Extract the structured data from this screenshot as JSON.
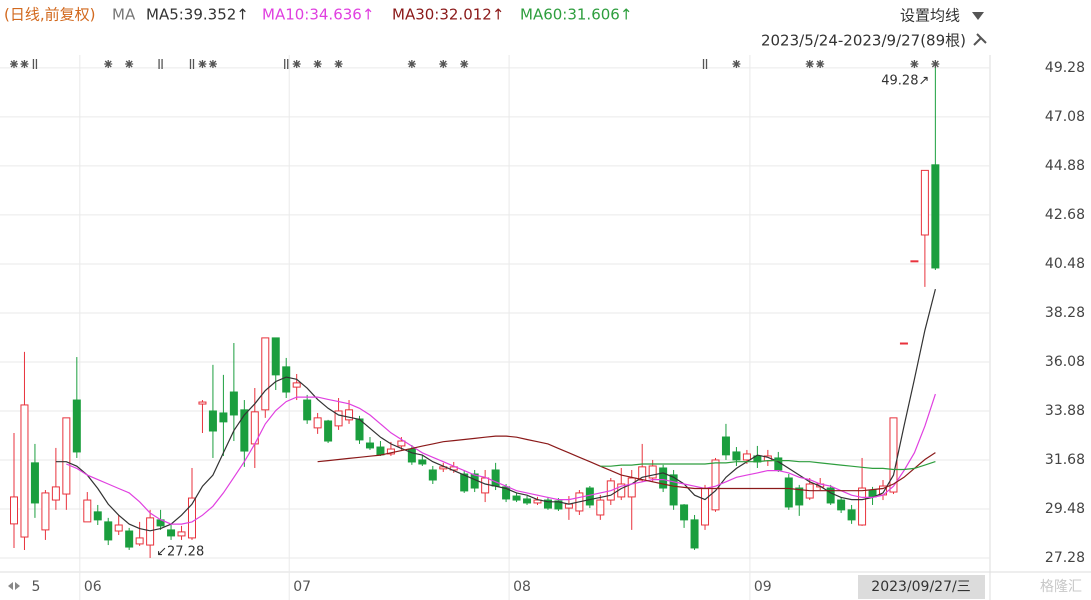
{
  "chart_data": {
    "type": "candlestick",
    "subtitle": "(日线,前复权)",
    "ma_label": "MA",
    "ma_setting": "设置均线",
    "range_label": "2023/5/24-2023/9/27(89根)",
    "cursor_date": "2023/09/27/三",
    "watermark": "格隆汇",
    "annotations": {
      "high": "49.28↗",
      "low": "↙27.28"
    },
    "up_color": "#e8323c",
    "down_color": "#1b9e3e",
    "grid": true,
    "categories": [
      null,
      "5",
      null,
      null,
      null,
      null,
      "06",
      null,
      null,
      null,
      null,
      null,
      null,
      null,
      null,
      null,
      null,
      null,
      null,
      null,
      null,
      null,
      null,
      null,
      null,
      null,
      "07",
      null,
      null,
      null,
      null,
      null,
      null,
      null,
      null,
      null,
      null,
      null,
      null,
      null,
      null,
      null,
      null,
      null,
      null,
      null,
      null,
      "08",
      null,
      null,
      null,
      null,
      null,
      null,
      null,
      null,
      null,
      null,
      null,
      null,
      null,
      null,
      null,
      null,
      null,
      null,
      null,
      null,
      null,
      null,
      "09",
      null,
      null,
      null,
      null,
      null,
      null,
      null,
      null,
      null,
      null,
      null,
      null,
      null,
      null,
      null,
      null,
      null,
      null
    ],
    "open": [
      28.81,
      28.22,
      31.55,
      28.54,
      29.88,
      30.15,
      34.37,
      28.9,
      29.35,
      28.9,
      28.49,
      28.49,
      27.91,
      27.86,
      28.99,
      28.54,
      28.27,
      28.18,
      34.19,
      33.88,
      33.79,
      34.73,
      33.93,
      32.4,
      33.93,
      37.16,
      35.86,
      34.95,
      34.37,
      33.12,
      33.43,
      33.21,
      33.48,
      33.52,
      32.44,
      32.26,
      31.95,
      32.31,
      32.17,
      31.68,
      31.23,
      31.28,
      31.23,
      31.05,
      31.05,
      30.2,
      31.23,
      30.47,
      30.06,
      29.93,
      29.75,
      29.88,
      29.84,
      29.52,
      29.39,
      30.42,
      29.21,
      29.88,
      30.02,
      30.02,
      30.78,
      30.87,
      31.32,
      31.01,
      29.66,
      28.99,
      28.76,
      29.44,
      32.71,
      32.04,
      31.68,
      31.86,
      31.64,
      31.77,
      30.87,
      30.42,
      29.97,
      30.47,
      30.42,
      29.88,
      29.44,
      28.76,
      30.33,
      30.11,
      30.24,
      36.93,
      40.62,
      41.78,
      44.93
    ],
    "high": [
      32.89,
      36.53,
      32.4,
      30.33,
      32.22,
      33.57,
      36.3,
      30.24,
      29.66,
      29.08,
      29.21,
      28.63,
      28.9,
      29.44,
      29.44,
      28.81,
      28.72,
      31.32,
      34.37,
      35.95,
      35.5,
      36.93,
      34.37,
      34.91,
      37.16,
      37.16,
      36.26,
      35.54,
      34.6,
      33.79,
      33.48,
      34.46,
      34.37,
      33.66,
      32.71,
      32.53,
      32.49,
      32.71,
      32.35,
      31.91,
      31.41,
      31.55,
      31.59,
      31.23,
      31.23,
      31.23,
      31.55,
      30.6,
      30.2,
      30.06,
      30.02,
      30.02,
      29.97,
      30.06,
      30.33,
      30.51,
      30.11,
      30.87,
      31.32,
      31.23,
      32.4,
      31.68,
      31.46,
      31.23,
      29.7,
      29.21,
      30.56,
      31.77,
      33.3,
      32.26,
      32.13,
      32.31,
      32.13,
      32.04,
      31.05,
      30.56,
      30.87,
      30.87,
      30.56,
      30.02,
      29.66,
      31.77,
      30.47,
      30.78,
      33.57,
      36.93,
      40.62,
      44.68,
      49.28
    ],
    "low": [
      27.73,
      27.64,
      29.08,
      28.09,
      29.44,
      29.44,
      31.77,
      28.9,
      28.76,
      27.86,
      28.31,
      27.64,
      27.82,
      27.28,
      28.54,
      28.09,
      28.09,
      28.09,
      32.89,
      31.77,
      31.86,
      32.53,
      31.37,
      31.32,
      33.57,
      34.82,
      34.46,
      34.37,
      33.3,
      32.85,
      32.44,
      33.03,
      33.3,
      32.4,
      32.13,
      31.86,
      31.86,
      32.13,
      31.46,
      31.41,
      30.6,
      31.14,
      31.1,
      30.2,
      30.24,
      29.79,
      30.33,
      29.79,
      29.79,
      29.66,
      29.66,
      29.44,
      29.39,
      28.99,
      29.21,
      29.52,
      28.99,
      29.66,
      29.88,
      28.54,
      30.69,
      30.69,
      30.24,
      29.44,
      28.63,
      27.64,
      28.54,
      29.35,
      31.68,
      31.41,
      31.5,
      31.32,
      31.41,
      31.14,
      29.44,
      29.17,
      29.88,
      30.33,
      29.66,
      29.3,
      28.81,
      28.72,
      29.66,
      29.88,
      30.15,
      36.93,
      40.62,
      39.45,
      40.21
    ],
    "close": [
      30.02,
      34.15,
      29.75,
      30.2,
      30.47,
      33.57,
      32.04,
      29.88,
      28.99,
      28.09,
      28.76,
      27.77,
      28.18,
      29.08,
      28.72,
      28.27,
      28.45,
      29.97,
      34.28,
      32.98,
      33.39,
      33.7,
      32.08,
      33.84,
      37.16,
      35.5,
      34.73,
      35.14,
      33.48,
      33.57,
      32.53,
      33.88,
      33.93,
      32.58,
      32.22,
      31.91,
      32.17,
      32.53,
      31.59,
      31.5,
      30.78,
      31.37,
      31.37,
      30.29,
      30.42,
      30.87,
      30.51,
      29.93,
      29.88,
      29.75,
      29.88,
      29.52,
      29.48,
      29.7,
      30.2,
      29.66,
      29.88,
      30.74,
      30.6,
      30.87,
      31.37,
      31.41,
      30.42,
      29.66,
      28.99,
      27.73,
      30.42,
      31.68,
      31.91,
      31.68,
      31.95,
      31.59,
      31.86,
      31.23,
      29.57,
      29.66,
      30.6,
      30.6,
      29.75,
      29.44,
      28.99,
      30.42,
      30.02,
      30.51,
      33.57,
      36.93,
      40.62,
      44.68,
      40.3
    ],
    "series": [
      {
        "name": "MA5:39.352↑",
        "color": "#333333",
        "values": [
          null,
          null,
          null,
          null,
          31.6,
          31.6,
          31.4,
          31.0,
          30.4,
          29.7,
          29.2,
          28.8,
          28.6,
          28.5,
          28.6,
          28.8,
          29.2,
          29.7,
          30.5,
          31.0,
          32.0,
          33.0,
          33.7,
          34.2,
          34.8,
          35.2,
          35.4,
          35.3,
          34.9,
          34.4,
          34.0,
          33.7,
          33.6,
          33.5,
          33.1,
          32.7,
          32.4,
          32.2,
          32.0,
          31.9,
          31.6,
          31.4,
          31.2,
          31.0,
          30.8,
          30.6,
          30.5,
          30.4,
          30.2,
          30.1,
          29.9,
          29.8,
          29.8,
          29.7,
          29.8,
          29.9,
          30.0,
          30.1,
          30.4,
          30.6,
          30.9,
          31.0,
          31.1,
          30.9,
          30.6,
          30.1,
          29.9,
          30.3,
          30.9,
          31.3,
          31.6,
          31.9,
          31.8,
          31.6,
          31.3,
          31.0,
          30.7,
          30.5,
          30.2,
          30.0,
          29.9,
          29.9,
          30.0,
          30.2,
          31.0,
          33.2,
          35.3,
          37.5,
          39.352
        ]
      },
      {
        "name": "MA10:34.636↑",
        "color": "#e040e0",
        "values": [
          null,
          null,
          null,
          null,
          null,
          31.5,
          31.3,
          31.0,
          30.8,
          30.6,
          30.4,
          30.2,
          29.8,
          29.3,
          29.0,
          28.8,
          28.8,
          28.9,
          29.2,
          29.6,
          30.2,
          30.9,
          31.6,
          32.4,
          33.3,
          33.9,
          34.3,
          34.5,
          34.5,
          34.5,
          34.4,
          34.3,
          34.2,
          34.0,
          33.7,
          33.3,
          32.9,
          32.6,
          32.3,
          32.0,
          31.8,
          31.6,
          31.4,
          31.2,
          31.0,
          30.9,
          30.7,
          30.5,
          30.3,
          30.2,
          30.1,
          30.0,
          29.9,
          29.9,
          30.0,
          30.1,
          30.2,
          30.3,
          30.5,
          30.6,
          30.7,
          30.8,
          30.8,
          30.7,
          30.6,
          30.5,
          30.4,
          30.5,
          30.7,
          30.9,
          31.0,
          31.1,
          31.2,
          31.2,
          31.1,
          30.9,
          30.8,
          30.6,
          30.5,
          30.3,
          30.1,
          30.0,
          30.0,
          30.1,
          30.5,
          31.2,
          32.0,
          33.2,
          34.636
        ]
      },
      {
        "name": "MA30:32.012↑",
        "color": "#8b1a1a",
        "values": [
          null,
          null,
          null,
          null,
          null,
          null,
          null,
          null,
          null,
          null,
          null,
          null,
          null,
          null,
          null,
          null,
          null,
          null,
          null,
          null,
          null,
          null,
          null,
          null,
          null,
          null,
          null,
          null,
          null,
          31.6,
          31.65,
          31.7,
          31.75,
          31.8,
          31.85,
          31.9,
          32.0,
          32.1,
          32.2,
          32.3,
          32.4,
          32.5,
          32.55,
          32.6,
          32.65,
          32.7,
          32.75,
          32.75,
          32.7,
          32.6,
          32.5,
          32.4,
          32.2,
          32.0,
          31.8,
          31.6,
          31.4,
          31.2,
          31.0,
          30.9,
          30.8,
          30.7,
          30.6,
          30.5,
          30.45,
          30.4,
          30.4,
          30.4,
          30.4,
          30.4,
          30.4,
          30.4,
          30.4,
          30.4,
          30.4,
          30.35,
          30.3,
          30.3,
          30.3,
          30.3,
          30.3,
          30.3,
          30.35,
          30.4,
          30.6,
          30.9,
          31.3,
          31.7,
          32.012
        ]
      },
      {
        "name": "MA60:31.606↑",
        "color": "#2e9e3e",
        "values": [
          null,
          null,
          null,
          null,
          null,
          null,
          null,
          null,
          null,
          null,
          null,
          null,
          null,
          null,
          null,
          null,
          null,
          null,
          null,
          null,
          null,
          null,
          null,
          null,
          null,
          null,
          null,
          null,
          null,
          null,
          null,
          null,
          null,
          null,
          null,
          null,
          null,
          null,
          null,
          null,
          null,
          null,
          null,
          null,
          null,
          null,
          null,
          null,
          null,
          null,
          null,
          null,
          null,
          null,
          null,
          null,
          31.4,
          31.4,
          31.45,
          31.45,
          31.5,
          31.5,
          31.5,
          31.5,
          31.5,
          31.5,
          31.5,
          31.55,
          31.55,
          31.6,
          31.6,
          31.6,
          31.65,
          31.65,
          31.65,
          31.6,
          31.6,
          31.55,
          31.5,
          31.45,
          31.4,
          31.35,
          31.3,
          31.3,
          31.25,
          31.25,
          31.3,
          31.45,
          31.606
        ]
      }
    ],
    "ylim": [
      26.65,
      49.86
    ],
    "yticks": [
      27.28,
      29.48,
      31.68,
      33.88,
      36.08,
      38.28,
      40.48,
      42.68,
      44.88,
      47.08,
      49.28
    ]
  }
}
